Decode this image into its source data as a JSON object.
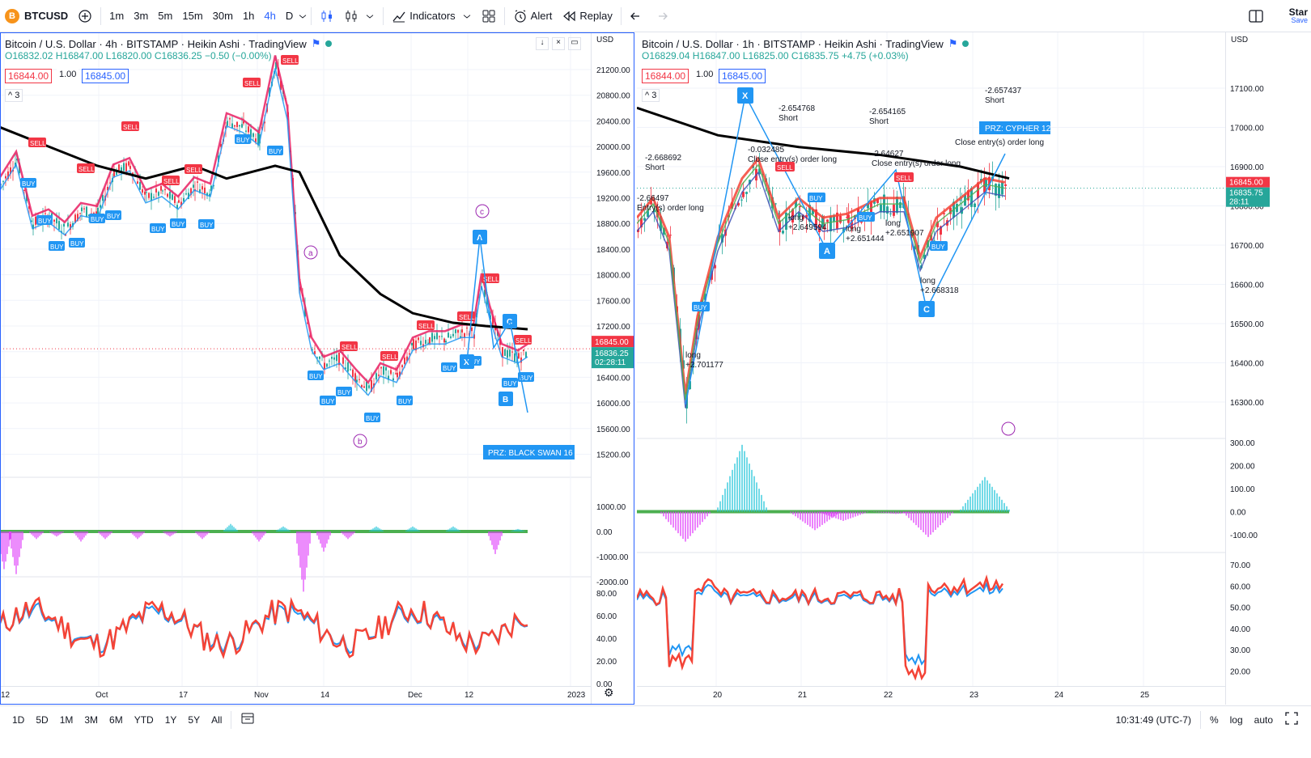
{
  "toolbar": {
    "symbol": "BTCUSD",
    "symbol_icon_letter": "B",
    "timeframes": [
      "1m",
      "3m",
      "5m",
      "15m",
      "30m",
      "1h",
      "4h",
      "D"
    ],
    "active_timeframe": "4h",
    "indicators_label": "Indicators",
    "alert_label": "Alert",
    "replay_label": "Replay",
    "right_label": "Star",
    "right_sublabel": "Save"
  },
  "left_chart": {
    "title": "Bitcoin / U.S. Dollar · 4h · BITSTAMP · Heikin Ashi · TradingView",
    "ohlc": {
      "o": "O16832.02",
      "h": "H16847.00",
      "l": "L16820.00",
      "c": "C16836.25",
      "chg": "−0.50 (−0.00%)"
    },
    "bid": "16844.00",
    "qty": "1.00",
    "ask": "16845.00",
    "indicator_count": "3",
    "currency": "USD",
    "price_ticks": [
      "21200.00",
      "20800.00",
      "20400.00",
      "20000.00",
      "19600.00",
      "19200.00",
      "18800.00",
      "18400.00",
      "18000.00",
      "17600.00",
      "17200.00",
      "16800.00",
      "16400.00",
      "16000.00",
      "15600.00",
      "15200.00"
    ],
    "last_price": "16845.00",
    "close_price": "16836.25",
    "countdown": "02:28:11",
    "macd_ticks": [
      "1000.00",
      "0.00",
      "-1000.00",
      "-2000.00"
    ],
    "rsi_ticks": [
      "80.00",
      "60.00",
      "40.00",
      "20.00",
      "0.00"
    ],
    "x_ticks": [
      "12",
      "Oct",
      "17",
      "Nov",
      "14",
      "Dec",
      "12",
      "2023"
    ],
    "prz_label": "PRZ: BLACK SWAN 16",
    "wave_labels": [
      "a",
      "b",
      "c"
    ],
    "points": [
      "A",
      "C",
      "X",
      "B"
    ]
  },
  "right_chart": {
    "title": "Bitcoin / U.S. Dollar · 1h · BITSTAMP · Heikin Ashi · TradingView",
    "ohlc": {
      "o": "O16829.04",
      "h": "H16847.00",
      "l": "L16825.00",
      "c": "C16835.75",
      "chg": "+4.75 (+0.03%)"
    },
    "bid": "16844.00",
    "qty": "1.00",
    "ask": "16845.00",
    "indicator_count": "3",
    "currency": "USD",
    "price_ticks": [
      "17100.00",
      "17000.00",
      "16900.00",
      "16800.00",
      "16700.00",
      "16600.00",
      "16500.00",
      "16400.00",
      "16300.00"
    ],
    "last_price": "16845.00",
    "close_price": "16835.75",
    "countdown": "28:11",
    "macd_ticks": [
      "300.00",
      "200.00",
      "100.00",
      "0.00",
      "-100.00"
    ],
    "rsi_ticks": [
      "70.00",
      "60.00",
      "50.00",
      "40.00",
      "30.00",
      "20.00"
    ],
    "x_ticks": [
      "20",
      "21",
      "22",
      "23",
      "24",
      "25"
    ],
    "prz_label": "PRZ: CYPHER 12",
    "points": [
      "X",
      "A",
      "C"
    ],
    "annotations": [
      {
        "text": "-2.668692",
        "sub": "Short"
      },
      {
        "text": "-2.654768",
        "sub": "Short"
      },
      {
        "text": "-2.654165",
        "sub": "Short"
      },
      {
        "text": "-2.657437",
        "sub": "Short"
      },
      {
        "text": "-2.66497",
        "sub": "Entry(s) order long"
      },
      {
        "text": "-0.032485",
        "sub": "Close entry(s) order long"
      },
      {
        "text": "-2.64627",
        "sub": "Close entry(s) order long"
      },
      {
        "text": "Close entry(s) order long",
        "sub": ""
      },
      {
        "text": "long",
        "sub": "+2.701177"
      },
      {
        "text": "long",
        "sub": "+2.649594"
      },
      {
        "text": "long",
        "sub": "+2.651444"
      },
      {
        "text": "long",
        "sub": "+2.651907"
      },
      {
        "text": "long",
        "sub": "+2.668318"
      }
    ]
  },
  "bottombar": {
    "ranges": [
      "1D",
      "5D",
      "1M",
      "3M",
      "6M",
      "YTD",
      "1Y",
      "5Y",
      "All"
    ],
    "clock": "10:31:49 (UTC-7)",
    "percent": "%",
    "log": "log",
    "auto": "auto"
  },
  "colors": {
    "accent": "#2962ff",
    "up": "#26a69a",
    "down": "#f23645",
    "buy": "#2196f3"
  }
}
